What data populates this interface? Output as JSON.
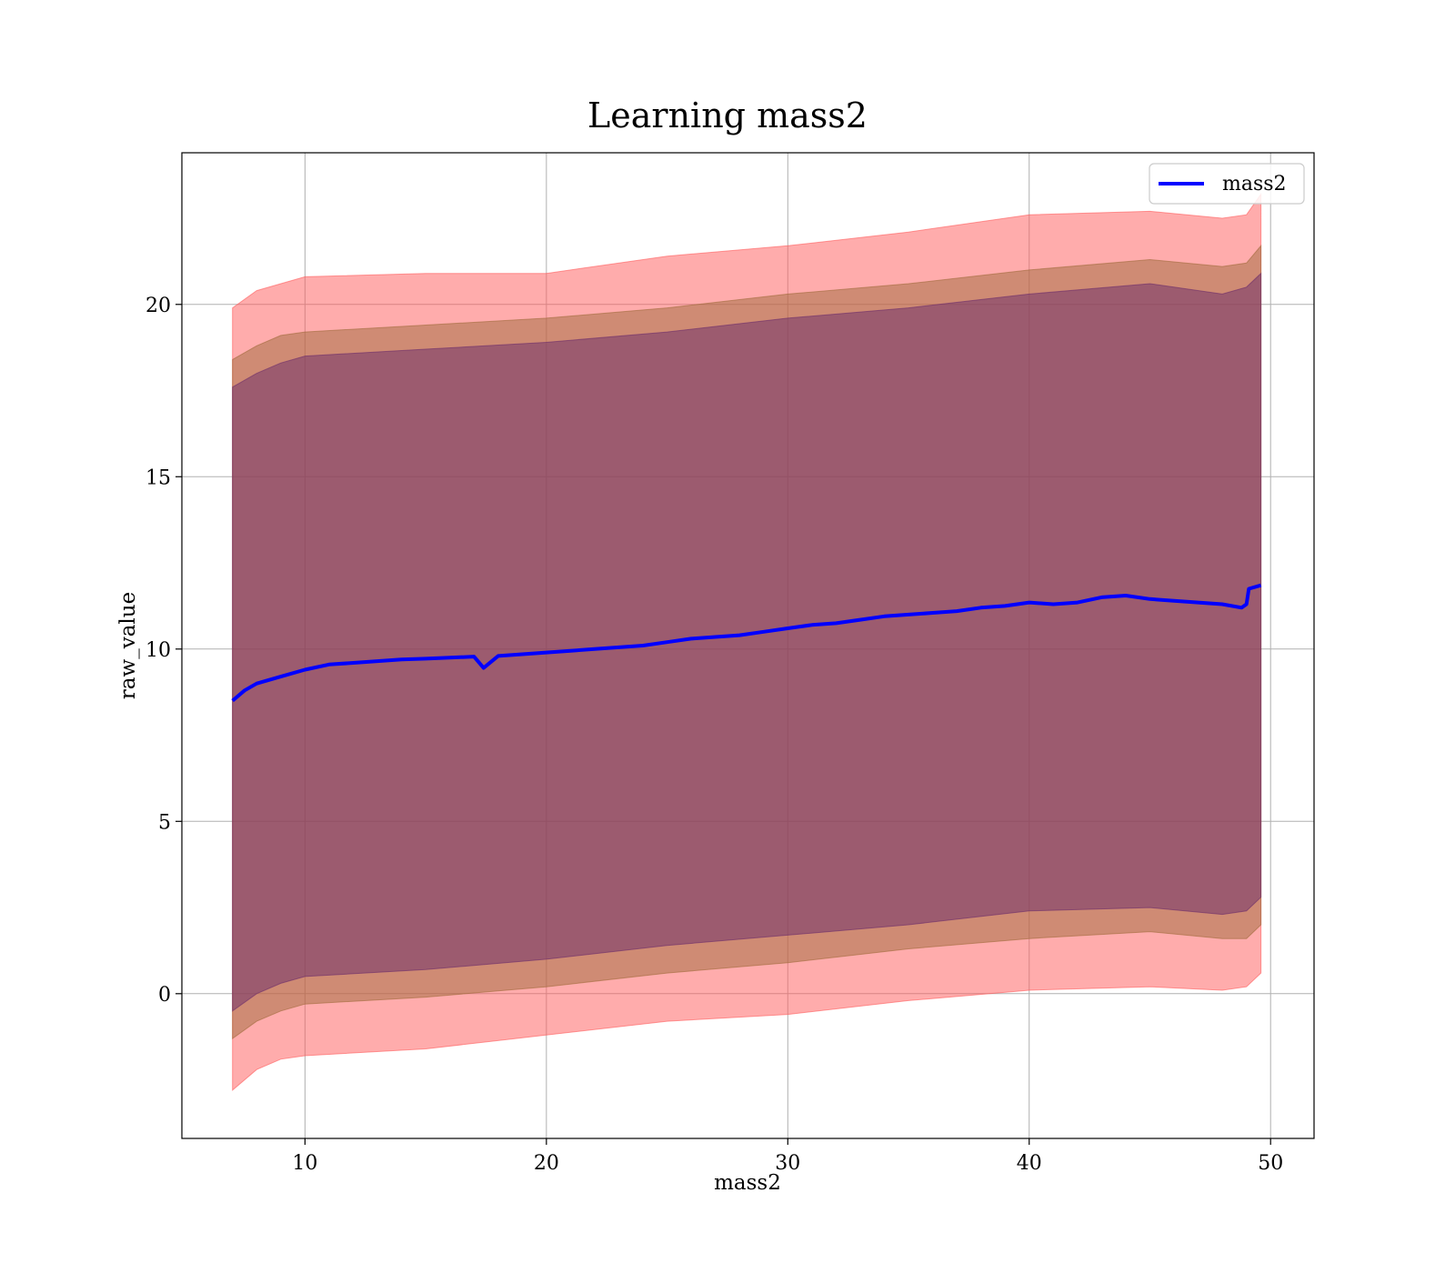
{
  "chart_data": {
    "type": "line",
    "title": "Learning mass2",
    "xlabel": "mass2",
    "ylabel": "raw_value",
    "xlim": [
      4.9,
      51.8
    ],
    "ylim": [
      -4.2,
      24.4
    ],
    "xticks": [
      10,
      20,
      30,
      40,
      50
    ],
    "yticks": [
      0,
      5,
      10,
      15,
      20
    ],
    "grid": true,
    "legend_position": "upper right",
    "series": [
      {
        "name": "mass2",
        "color": "#0000ff",
        "x": [
          7.0,
          7.5,
          8.0,
          9.0,
          10.0,
          11.0,
          12.0,
          13.0,
          14.0,
          15.0,
          16.0,
          17.0,
          17.4,
          18.0,
          19.0,
          20.0,
          21.0,
          22.0,
          23.0,
          24.0,
          25.0,
          26.0,
          27.0,
          28.0,
          29.0,
          30.0,
          31.0,
          32.0,
          33.0,
          34.0,
          35.0,
          36.0,
          37.0,
          38.0,
          39.0,
          40.0,
          41.0,
          42.0,
          43.0,
          44.0,
          45.0,
          46.0,
          47.0,
          48.0,
          48.8,
          49.0,
          49.1,
          49.6
        ],
        "values": [
          8.5,
          8.8,
          9.0,
          9.2,
          9.4,
          9.55,
          9.6,
          9.65,
          9.7,
          9.72,
          9.75,
          9.78,
          9.45,
          9.8,
          9.85,
          9.9,
          9.95,
          10.0,
          10.05,
          10.1,
          10.2,
          10.3,
          10.35,
          10.4,
          10.5,
          10.6,
          10.7,
          10.75,
          10.85,
          10.95,
          11.0,
          11.05,
          11.1,
          11.2,
          11.25,
          11.35,
          11.3,
          11.35,
          11.5,
          11.55,
          11.45,
          11.4,
          11.35,
          11.3,
          11.2,
          11.3,
          11.75,
          11.85
        ]
      }
    ],
    "bands": [
      {
        "color": "#ff5a5a",
        "x": [
          7.0,
          8.0,
          9.0,
          10.0,
          15.0,
          20.0,
          25.0,
          30.0,
          35.0,
          40.0,
          45.0,
          48.0,
          49.0,
          49.6
        ],
        "upper": [
          19.9,
          20.4,
          20.6,
          20.8,
          20.9,
          20.9,
          21.4,
          21.7,
          22.1,
          22.6,
          22.7,
          22.5,
          22.6,
          23.2
        ],
        "lower": [
          -2.8,
          -2.2,
          -1.9,
          -1.8,
          -1.6,
          -1.2,
          -0.8,
          -0.6,
          -0.2,
          0.1,
          0.2,
          0.1,
          0.2,
          0.6
        ]
      },
      {
        "color": "#a06a3c",
        "x": [
          7.0,
          8.0,
          9.0,
          10.0,
          15.0,
          20.0,
          25.0,
          30.0,
          35.0,
          40.0,
          45.0,
          48.0,
          49.0,
          49.6
        ],
        "upper": [
          18.4,
          18.8,
          19.1,
          19.2,
          19.4,
          19.6,
          19.9,
          20.3,
          20.6,
          21.0,
          21.3,
          21.1,
          21.2,
          21.7
        ],
        "lower": [
          -1.3,
          -0.8,
          -0.5,
          -0.3,
          -0.1,
          0.2,
          0.6,
          0.9,
          1.3,
          1.6,
          1.8,
          1.6,
          1.6,
          2.0
        ]
      },
      {
        "color": "#6a2c6a",
        "x": [
          7.0,
          8.0,
          9.0,
          10.0,
          15.0,
          20.0,
          25.0,
          30.0,
          35.0,
          40.0,
          45.0,
          48.0,
          49.0,
          49.6
        ],
        "upper": [
          17.6,
          18.0,
          18.3,
          18.5,
          18.7,
          18.9,
          19.2,
          19.6,
          19.9,
          20.3,
          20.6,
          20.3,
          20.5,
          20.9
        ],
        "lower": [
          -0.5,
          0.0,
          0.3,
          0.5,
          0.7,
          1.0,
          1.4,
          1.7,
          2.0,
          2.4,
          2.5,
          2.3,
          2.4,
          2.8
        ]
      }
    ]
  }
}
